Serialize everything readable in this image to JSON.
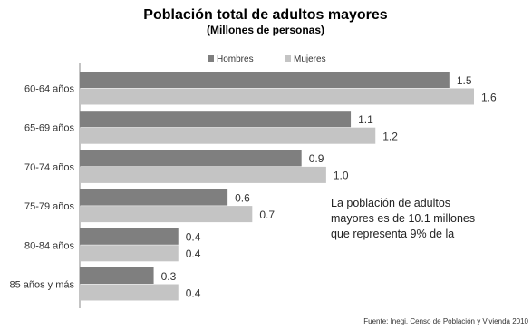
{
  "chart_data": {
    "type": "bar",
    "orientation": "horizontal",
    "title": "Población total de adultos mayores",
    "subtitle": "(Millones  de personas)",
    "categories": [
      "60-64 años",
      "65-69 años",
      "70-74 años",
      "75-79 años",
      "80-84 años",
      "85 años y más"
    ],
    "series": [
      {
        "name": "Hombres",
        "values": [
          1.5,
          1.1,
          0.9,
          0.6,
          0.4,
          0.3
        ],
        "color": "#7f7f7f"
      },
      {
        "name": "Mujeres",
        "values": [
          1.6,
          1.2,
          1.0,
          0.7,
          0.4,
          0.4
        ],
        "color": "#c4c4c4"
      }
    ],
    "value_labels": {
      "Hombres": [
        "1.5",
        "1.1",
        "0.9",
        "0.6",
        "0.4",
        "0.3"
      ],
      "Mujeres": [
        "1.6",
        "1.2",
        "1.0",
        "0.7",
        "0.4",
        "0.4"
      ]
    },
    "xlim": [
      0,
      1.6
    ],
    "grid": false,
    "legend_position": "top",
    "annotation": [
      "La población de  adultos",
      "mayores es de 10.1 millones",
      "que representa 9% de la"
    ],
    "source": "Fuente:  Inegi. Censo de Población y Vivienda 2010"
  }
}
